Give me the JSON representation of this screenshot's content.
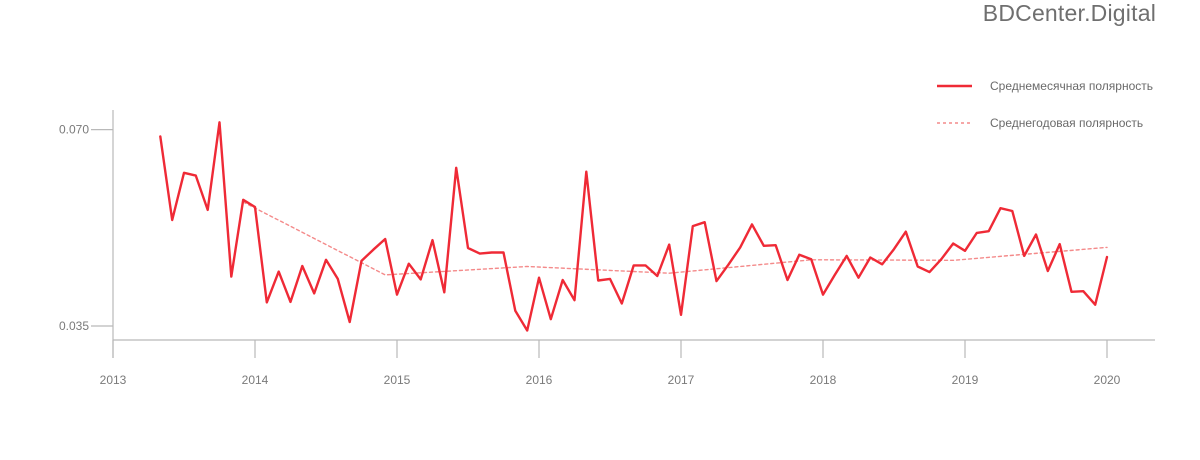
{
  "brand": "BDCenter.Digital",
  "chart_data": {
    "type": "line",
    "xlim": [
      2013.0,
      2020.0
    ],
    "ylim": [
      0.0325,
      0.0735
    ],
    "x_ticks": [
      2013,
      2014,
      2015,
      2016,
      2017,
      2018,
      2019,
      2020
    ],
    "y_ticks": [
      0.035,
      0.07
    ],
    "y_tick_labels": [
      "0.035",
      "0.070"
    ],
    "legend_position": "top-right",
    "grid": false,
    "series": [
      {
        "name": "Среднемесячная полярность",
        "style": "solid",
        "color": "#ef2a36",
        "x": [
          2013.333,
          2013.417,
          2013.5,
          2013.583,
          2013.667,
          2013.75,
          2013.833,
          2013.917,
          2014.0,
          2014.083,
          2014.167,
          2014.25,
          2014.333,
          2014.417,
          2014.5,
          2014.583,
          2014.667,
          2014.75,
          2014.833,
          2014.917,
          2015.0,
          2015.083,
          2015.167,
          2015.25,
          2015.333,
          2015.417,
          2015.5,
          2015.583,
          2015.667,
          2015.75,
          2015.833,
          2015.917,
          2016.0,
          2016.083,
          2016.167,
          2016.25,
          2016.333,
          2016.417,
          2016.5,
          2016.583,
          2016.667,
          2016.75,
          2016.833,
          2016.917,
          2017.0,
          2017.083,
          2017.167,
          2017.25,
          2017.333,
          2017.417,
          2017.5,
          2017.583,
          2017.667,
          2017.75,
          2017.833,
          2017.917,
          2018.0,
          2018.083,
          2018.167,
          2018.25,
          2018.333,
          2018.417,
          2018.5,
          2018.583,
          2018.667,
          2018.75,
          2018.833,
          2018.917,
          2019.0,
          2019.083,
          2019.167,
          2019.25,
          2019.333,
          2019.417,
          2019.5,
          2019.583,
          2019.667,
          2019.75,
          2019.833,
          2019.917,
          2020.0
        ],
        "values": [
          0.0688,
          0.0539,
          0.0623,
          0.0618,
          0.0557,
          0.0713,
          0.0438,
          0.0575,
          0.0562,
          0.0392,
          0.0447,
          0.0393,
          0.0457,
          0.0408,
          0.0468,
          0.0434,
          0.0357,
          0.0466,
          0.0486,
          0.0505,
          0.0406,
          0.0461,
          0.0433,
          0.0503,
          0.041,
          0.0632,
          0.0489,
          0.0479,
          0.0481,
          0.0481,
          0.0377,
          0.0342,
          0.0436,
          0.0362,
          0.0432,
          0.0396,
          0.0625,
          0.0431,
          0.0434,
          0.039,
          0.0458,
          0.0458,
          0.0439,
          0.0495,
          0.037,
          0.0528,
          0.0535,
          0.043,
          0.0459,
          0.049,
          0.0531,
          0.0493,
          0.0494,
          0.0432,
          0.0477,
          0.0469,
          0.0406,
          0.0441,
          0.0475,
          0.0436,
          0.0472,
          0.046,
          0.0487,
          0.0518,
          0.0456,
          0.0446,
          0.0469,
          0.0497,
          0.0484,
          0.0516,
          0.0519,
          0.056,
          0.0555,
          0.0475,
          0.0513,
          0.0448,
          0.0496,
          0.0411,
          0.0412,
          0.0388,
          0.0473
        ]
      },
      {
        "name": "Среднегодовая полярность",
        "style": "dashed",
        "color": "#f48a8a",
        "x": [
          2013.917,
          2014.917,
          2015.917,
          2016.917,
          2017.917,
          2018.917,
          2020.0
        ],
        "values": [
          0.0571,
          0.0441,
          0.0456,
          0.0444,
          0.0468,
          0.0467,
          0.049
        ]
      }
    ]
  }
}
